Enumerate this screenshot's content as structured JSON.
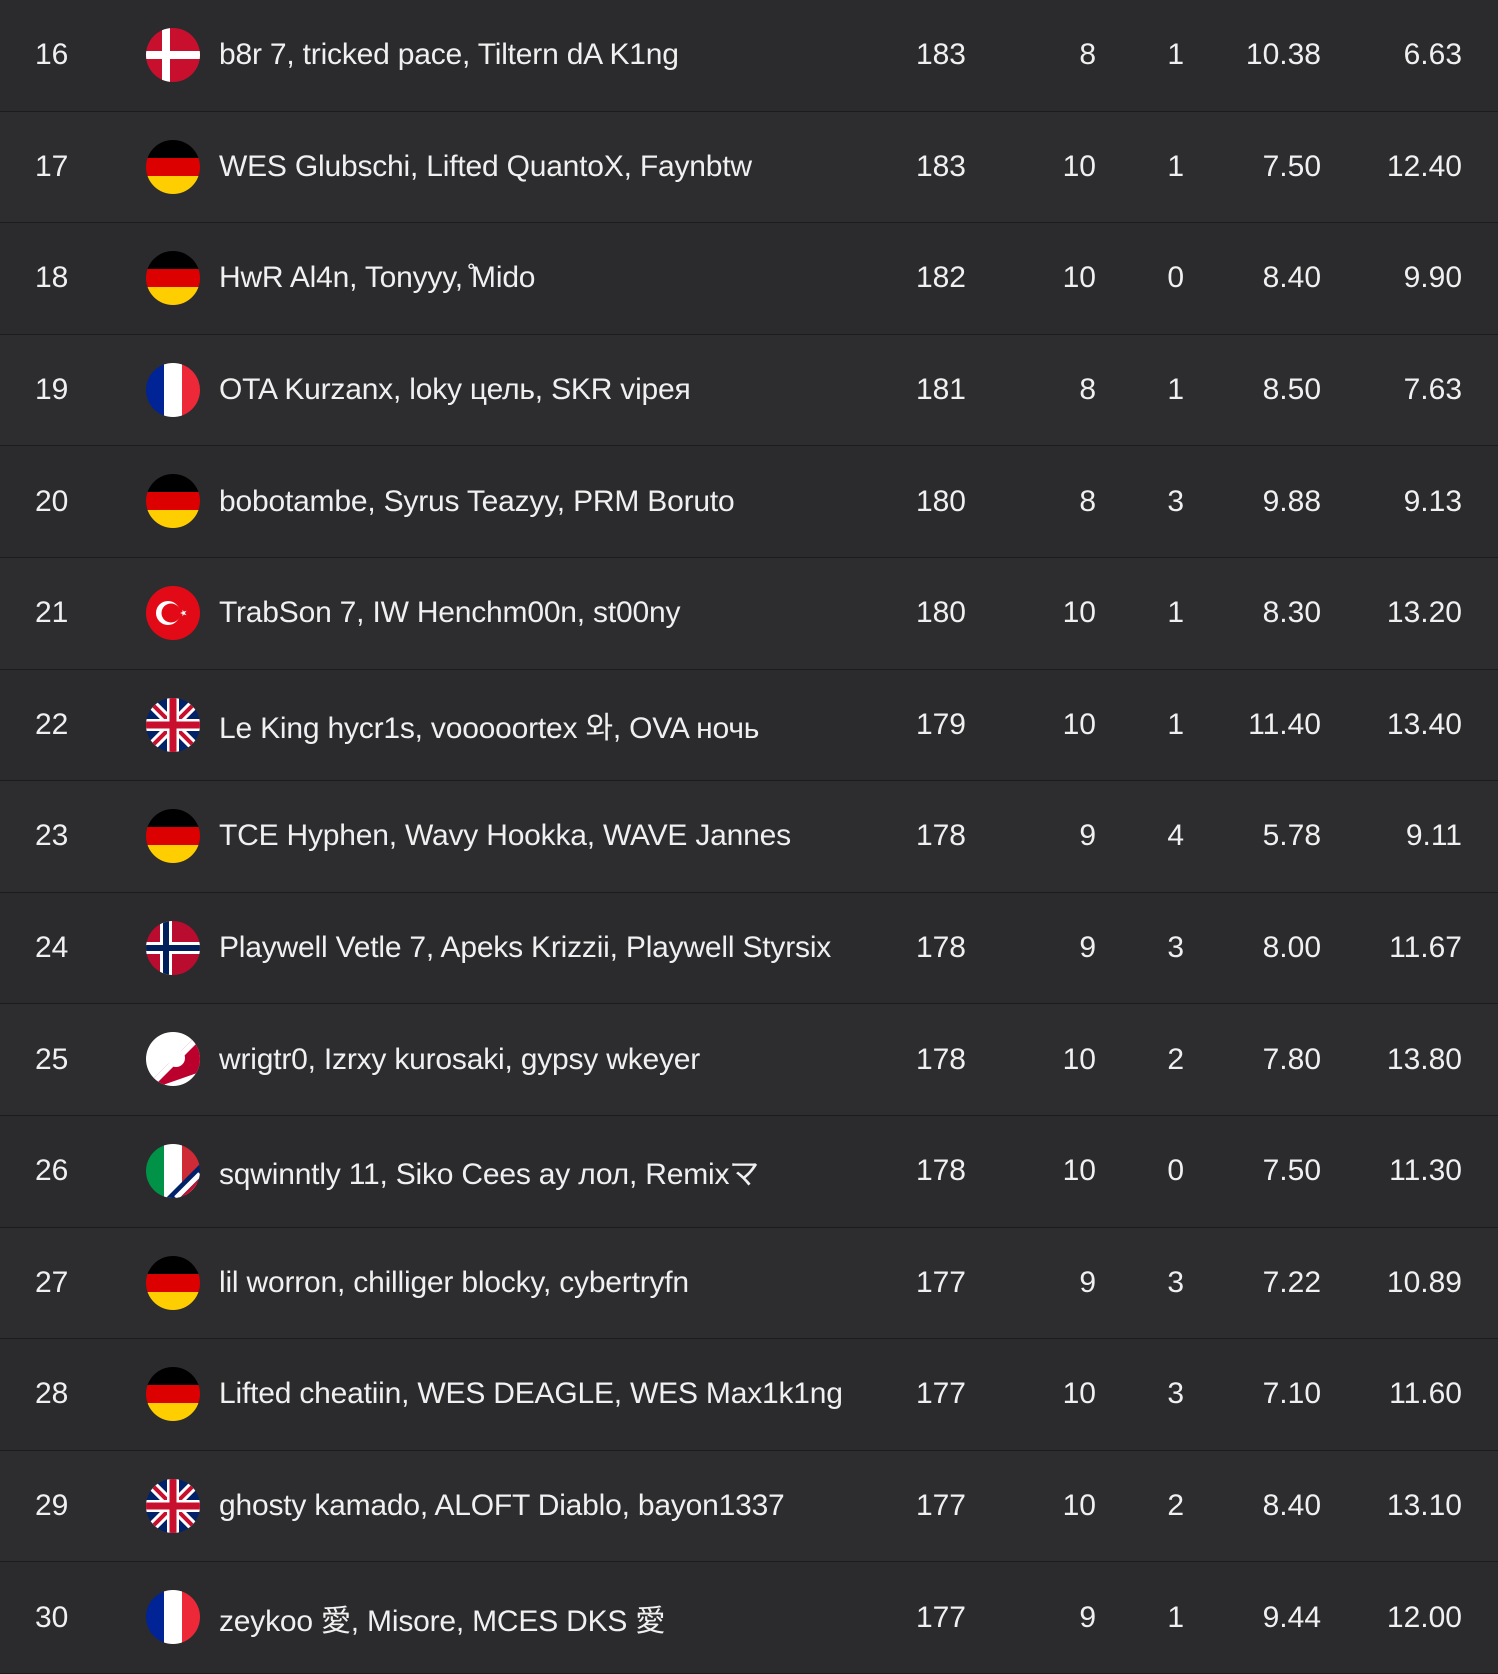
{
  "rows": [
    {
      "rank": "16",
      "flag": "denmark-flag-icon",
      "team": "b8r 7, tricked pace, Tiltern dA K1ng",
      "points": "183",
      "matches": "8",
      "wins": "1",
      "avg_place": "10.38",
      "avg_kills": "6.63"
    },
    {
      "rank": "17",
      "flag": "germany-flag-icon",
      "team": "WES Glubschi, Lifted QuantoX, Faynbtw",
      "points": "183",
      "matches": "10",
      "wins": "1",
      "avg_place": "7.50",
      "avg_kills": "12.40"
    },
    {
      "rank": "18",
      "flag": "germany-flag-icon",
      "team": "HwR Al4n, Tonyyy, ̊Mido",
      "points": "182",
      "matches": "10",
      "wins": "0",
      "avg_place": "8.40",
      "avg_kills": "9.90"
    },
    {
      "rank": "19",
      "flag": "france-flag-icon",
      "team": "OTA Kurzanx, loky цель, SKR vipeя",
      "points": "181",
      "matches": "8",
      "wins": "1",
      "avg_place": "8.50",
      "avg_kills": "7.63"
    },
    {
      "rank": "20",
      "flag": "germany-flag-icon",
      "team": "bobotambe, Syrus Teazyy, PRM Boruto",
      "points": "180",
      "matches": "8",
      "wins": "3",
      "avg_place": "9.88",
      "avg_kills": "9.13"
    },
    {
      "rank": "21",
      "flag": "turkey-flag-icon",
      "team": "TrabSon 7, IW Henchm00n, st00ny",
      "points": "180",
      "matches": "10",
      "wins": "1",
      "avg_place": "8.30",
      "avg_kills": "13.20"
    },
    {
      "rank": "22",
      "flag": "uk-flag-icon",
      "team": "Le King hycr1s, vooooortex 와, OVA ночь",
      "points": "179",
      "matches": "10",
      "wins": "1",
      "avg_place": "11.40",
      "avg_kills": "13.40"
    },
    {
      "rank": "23",
      "flag": "germany-flag-icon",
      "team": "TCE Hyphen, Wavy Hookka, WAVE Jannes",
      "points": "178",
      "matches": "9",
      "wins": "4",
      "avg_place": "5.78",
      "avg_kills": "9.11"
    },
    {
      "rank": "24",
      "flag": "norway-flag-icon",
      "team": "Playwell Vetle 7, Apeks Krizzii, Playwell Styrsix",
      "points": "178",
      "matches": "9",
      "wins": "3",
      "avg_place": "8.00",
      "avg_kills": "11.67"
    },
    {
      "rank": "25",
      "flag": "mixed-flag-icon",
      "team": "wrigtr0, Izrxy kurosaki, gypsy wkeyer",
      "points": "178",
      "matches": "10",
      "wins": "2",
      "avg_place": "7.80",
      "avg_kills": "13.80"
    },
    {
      "rank": "26",
      "flag": "italy-uk-flag-icon",
      "team": "sqwinntly 11, Siko Cees ay лол, Remixマ",
      "points": "178",
      "matches": "10",
      "wins": "0",
      "avg_place": "7.50",
      "avg_kills": "11.30"
    },
    {
      "rank": "27",
      "flag": "germany-flag-icon",
      "team": "lil worron, chilliger blocky, cybertryfn",
      "points": "177",
      "matches": "9",
      "wins": "3",
      "avg_place": "7.22",
      "avg_kills": "10.89"
    },
    {
      "rank": "28",
      "flag": "germany-flag-icon",
      "team": "Lifted cheatiin, WES DEAGLE, WES Max1k1ng",
      "points": "177",
      "matches": "10",
      "wins": "3",
      "avg_place": "7.10",
      "avg_kills": "11.60"
    },
    {
      "rank": "29",
      "flag": "uk-flag-icon",
      "team": "ghosty kamado, ALOFT Diablo, bayon1337",
      "points": "177",
      "matches": "10",
      "wins": "2",
      "avg_place": "8.40",
      "avg_kills": "13.10"
    },
    {
      "rank": "30",
      "flag": "france-flag-icon",
      "team": "zeykoo 愛, Misore, MCES DKS 愛",
      "points": "177",
      "matches": "9",
      "wins": "1",
      "avg_place": "9.44",
      "avg_kills": "12.00"
    }
  ]
}
